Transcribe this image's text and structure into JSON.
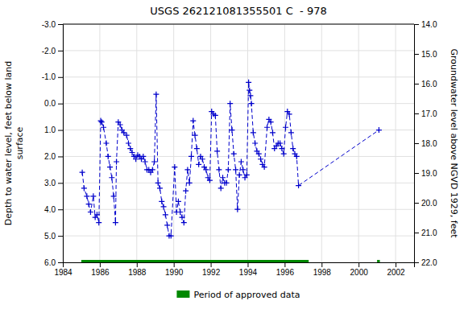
{
  "chart_data": {
    "type": "line",
    "title": "USGS 262121081355501 C  - 978",
    "ylabel": "Depth to water level, feet below land\nsurface",
    "y2label": "Groundwater level above NGVD 1929, feet",
    "xlim": [
      1984,
      2003
    ],
    "xticks": [
      1984,
      1986,
      1988,
      1990,
      1992,
      1994,
      1996,
      1998,
      2000,
      2002
    ],
    "ylim": [
      6.0,
      -3.0
    ],
    "yticks": [
      {
        "value": -3.0,
        "label": "-3.0"
      },
      {
        "value": -2.0,
        "label": "-2.0"
      },
      {
        "value": -1.0,
        "label": "-1.0"
      },
      {
        "value": 0.0,
        "label": "0.0"
      },
      {
        "value": 1.0,
        "label": "1.0"
      },
      {
        "value": 2.0,
        "label": "2.0"
      },
      {
        "value": 3.0,
        "label": "3.0"
      },
      {
        "value": 4.0,
        "label": "4.0"
      },
      {
        "value": 5.0,
        "label": "5.0"
      },
      {
        "value": 6.0,
        "label": "6.0"
      }
    ],
    "y2lim": [
      22.0,
      14.0
    ],
    "y2ticks": [
      {
        "value": 22.0,
        "label": "22.0"
      },
      {
        "value": 21.0,
        "label": "21.0"
      },
      {
        "value": 20.0,
        "label": "20.0"
      },
      {
        "value": 19.0,
        "label": "19.0"
      },
      {
        "value": 18.0,
        "label": "18.0"
      },
      {
        "value": 17.0,
        "label": "17.0"
      },
      {
        "value": 16.0,
        "label": "16.0"
      },
      {
        "value": 15.0,
        "label": "15.0"
      },
      {
        "value": 14.0,
        "label": "14.0"
      }
    ],
    "grid": true,
    "legend": "bottom",
    "series": [
      {
        "type": "line",
        "color": "#0000cc",
        "marker": "plus",
        "line_style": "dashed",
        "x": [
          1985.05,
          1985.15,
          1985.3,
          1985.4,
          1985.5,
          1985.65,
          1985.75,
          1985.85,
          1985.95,
          1986.05,
          1986.1,
          1986.2,
          1986.35,
          1986.45,
          1986.55,
          1986.65,
          1986.75,
          1986.85,
          1986.9,
          1987.0,
          1987.1,
          1987.2,
          1987.3,
          1987.45,
          1987.55,
          1987.65,
          1987.75,
          1987.85,
          1987.95,
          1988.05,
          1988.15,
          1988.25,
          1988.35,
          1988.45,
          1988.55,
          1988.65,
          1988.75,
          1988.85,
          1988.95,
          1989.05,
          1989.15,
          1989.25,
          1989.35,
          1989.45,
          1989.55,
          1989.65,
          1989.75,
          1989.85,
          1990.05,
          1990.15,
          1990.25,
          1990.35,
          1990.45,
          1990.55,
          1990.65,
          1990.75,
          1990.85,
          1990.95,
          1991.05,
          1991.15,
          1991.25,
          1991.35,
          1991.45,
          1991.55,
          1991.65,
          1991.75,
          1991.85,
          1991.95,
          1992.05,
          1992.15,
          1992.25,
          1992.35,
          1992.45,
          1992.55,
          1992.65,
          1992.75,
          1992.85,
          1992.95,
          1993.05,
          1993.15,
          1993.25,
          1993.35,
          1993.45,
          1993.55,
          1993.65,
          1993.75,
          1993.85,
          1993.95,
          1994.05,
          1994.1,
          1994.15,
          1994.2,
          1994.3,
          1994.4,
          1994.5,
          1994.6,
          1994.7,
          1994.8,
          1994.9,
          1995.05,
          1995.15,
          1995.25,
          1995.35,
          1995.45,
          1995.55,
          1995.65,
          1995.75,
          1995.85,
          1995.95,
          1996.05,
          1996.15,
          1996.25,
          1996.35,
          1996.45,
          1996.55,
          1996.65,
          1996.75,
          2001.1
        ],
        "values": [
          2.6,
          3.2,
          3.5,
          3.8,
          4.1,
          3.5,
          4.3,
          4.2,
          4.5,
          0.65,
          0.7,
          0.9,
          1.5,
          2.0,
          2.4,
          2.8,
          3.5,
          4.5,
          2.2,
          0.7,
          0.8,
          1.0,
          1.1,
          1.2,
          1.5,
          1.7,
          1.85,
          2.0,
          2.1,
          1.95,
          2.0,
          2.1,
          2.0,
          2.2,
          2.5,
          2.5,
          2.6,
          2.5,
          2.2,
          -0.35,
          3.0,
          3.2,
          3.7,
          3.9,
          4.2,
          4.6,
          5.0,
          5.0,
          2.4,
          4.1,
          3.7,
          4.1,
          4.3,
          4.5,
          3.3,
          2.5,
          3.0,
          2.0,
          0.65,
          1.2,
          1.7,
          2.3,
          2.0,
          2.1,
          2.4,
          2.5,
          2.8,
          2.9,
          0.3,
          0.4,
          0.45,
          1.8,
          2.5,
          3.2,
          2.8,
          3.0,
          3.0,
          2.5,
          0.0,
          1.0,
          1.9,
          2.5,
          4.0,
          2.7,
          2.2,
          2.5,
          2.8,
          2.7,
          -0.8,
          -0.5,
          -0.3,
          0.0,
          1.1,
          1.5,
          1.8,
          1.9,
          2.1,
          2.3,
          2.4,
          0.9,
          0.6,
          0.7,
          1.1,
          1.7,
          1.6,
          1.5,
          1.5,
          1.7,
          1.9,
          0.9,
          0.3,
          0.4,
          1.1,
          1.7,
          1.9,
          2.0,
          3.1,
          1.0
        ]
      },
      {
        "name": "Period of approved data",
        "type": "segment",
        "color": "#008800",
        "x": [
          1985.0,
          2001.0
        ],
        "x_end": [
          1997.3,
          2001.15
        ],
        "values": [
          6.0,
          6.0
        ]
      }
    ]
  }
}
